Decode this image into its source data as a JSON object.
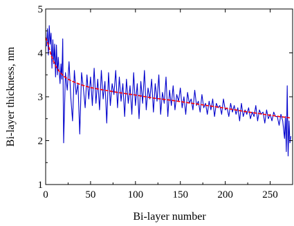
{
  "chart_data": {
    "type": "line",
    "xlabel": "Bi-layer number",
    "ylabel": "Bi-layer thickness, nm",
    "xlim": [
      0,
      275
    ],
    "ylim": [
      1,
      5
    ],
    "x_ticks": [
      0,
      50,
      100,
      150,
      200,
      250
    ],
    "y_ticks": [
      1,
      2,
      3,
      4,
      5
    ],
    "grid": false,
    "colors": {
      "data": "#0000cc",
      "fit": "#ff0000"
    },
    "series": [
      {
        "style": "noisy-line",
        "x": [
          1,
          2,
          3,
          4,
          5,
          6,
          7,
          8,
          9,
          10,
          11,
          12,
          13,
          14,
          15,
          16,
          17,
          18,
          19,
          20,
          22,
          24,
          26,
          28,
          30,
          32,
          34,
          36,
          38,
          40,
          42,
          44,
          46,
          48,
          50,
          52,
          54,
          56,
          58,
          60,
          62,
          64,
          66,
          68,
          70,
          72,
          74,
          76,
          78,
          80,
          82,
          84,
          86,
          88,
          90,
          92,
          94,
          96,
          98,
          100,
          102,
          104,
          106,
          108,
          110,
          112,
          114,
          116,
          118,
          120,
          122,
          124,
          126,
          128,
          130,
          132,
          134,
          136,
          138,
          140,
          142,
          144,
          146,
          148,
          150,
          152,
          154,
          156,
          158,
          160,
          162,
          164,
          166,
          168,
          170,
          172,
          174,
          176,
          178,
          180,
          182,
          184,
          186,
          188,
          190,
          192,
          194,
          196,
          198,
          200,
          202,
          204,
          206,
          208,
          210,
          212,
          214,
          216,
          218,
          220,
          222,
          224,
          226,
          228,
          230,
          232,
          234,
          236,
          238,
          240,
          242,
          244,
          246,
          248,
          250,
          252,
          254,
          256,
          258,
          260,
          262,
          264,
          266,
          267,
          268,
          269,
          270,
          271,
          272,
          273
        ],
        "y": [
          4.15,
          4.55,
          3.95,
          4.62,
          4.2,
          4.45,
          3.65,
          4.3,
          3.75,
          4.2,
          3.45,
          4.18,
          3.5,
          3.9,
          3.6,
          3.3,
          3.75,
          3.4,
          4.32,
          1.95,
          3.55,
          3.15,
          3.8,
          3.0,
          2.45,
          3.6,
          3.05,
          3.3,
          2.15,
          3.55,
          3.2,
          2.75,
          3.5,
          2.95,
          3.45,
          2.8,
          3.65,
          2.85,
          3.4,
          2.7,
          3.6,
          2.95,
          3.35,
          2.4,
          3.55,
          2.8,
          3.3,
          3.05,
          3.6,
          2.75,
          3.45,
          2.9,
          3.3,
          2.55,
          3.4,
          2.85,
          3.25,
          2.6,
          3.55,
          2.8,
          3.3,
          2.5,
          3.35,
          2.85,
          3.6,
          2.7,
          3.2,
          2.95,
          3.4,
          2.65,
          3.3,
          2.9,
          3.5,
          2.6,
          3.1,
          2.85,
          3.45,
          2.55,
          3.15,
          2.8,
          3.25,
          2.7,
          3.05,
          2.9,
          3.2,
          2.75,
          3.0,
          2.6,
          3.1,
          2.85,
          2.95,
          2.7,
          3.15,
          2.8,
          2.9,
          2.65,
          3.05,
          2.75,
          2.85,
          2.6,
          2.9,
          2.7,
          2.95,
          2.55,
          2.85,
          2.75,
          2.8,
          2.6,
          2.95,
          2.7,
          2.75,
          2.55,
          2.85,
          2.65,
          2.8,
          2.6,
          2.75,
          2.45,
          2.85,
          2.55,
          2.7,
          2.6,
          2.75,
          2.5,
          2.65,
          2.55,
          2.8,
          2.45,
          2.7,
          2.6,
          2.65,
          2.4,
          2.7,
          2.5,
          2.6,
          2.45,
          2.65,
          2.55,
          2.55,
          2.35,
          2.6,
          2.45,
          2.05,
          2.55,
          1.75,
          3.25,
          1.65,
          2.45,
          1.95,
          2.1
        ]
      },
      {
        "style": "fit-line",
        "x": [
          0,
          2,
          4,
          6,
          8,
          10,
          12,
          15,
          20,
          25,
          30,
          40,
          50,
          60,
          80,
          100,
          120,
          140,
          160,
          180,
          200,
          220,
          240,
          260,
          272
        ],
        "y": [
          4.35,
          4.25,
          4.1,
          3.95,
          3.85,
          3.75,
          3.67,
          3.58,
          3.47,
          3.4,
          3.35,
          3.27,
          3.21,
          3.17,
          3.1,
          3.04,
          2.97,
          2.92,
          2.86,
          2.8,
          2.74,
          2.67,
          2.61,
          2.55,
          2.52
        ]
      }
    ]
  }
}
